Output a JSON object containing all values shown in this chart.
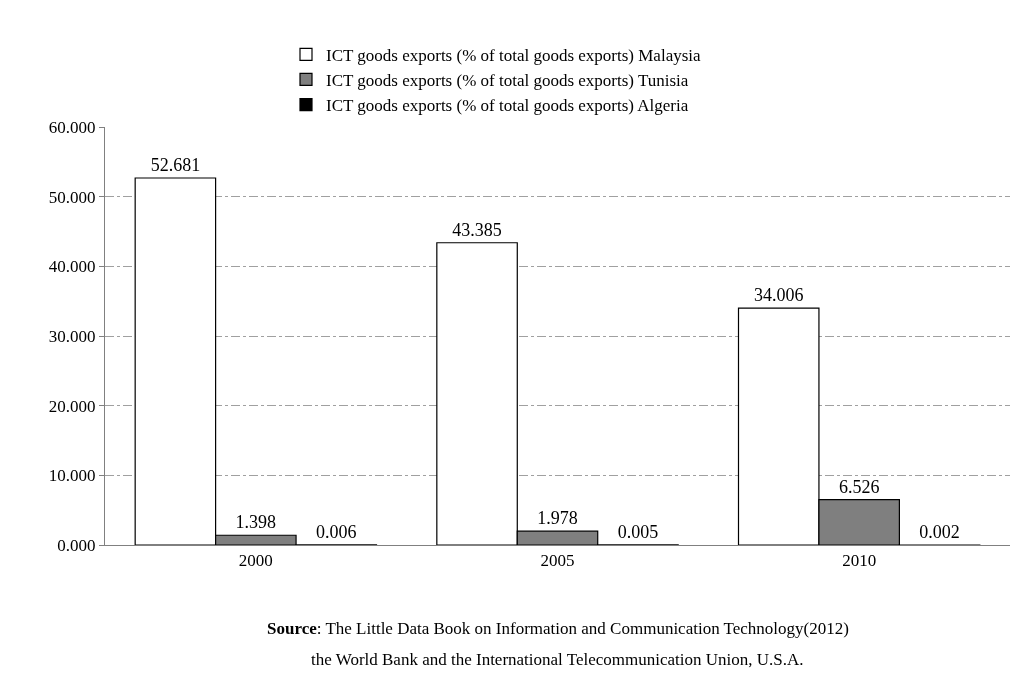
{
  "chart_data": {
    "type": "bar",
    "categories": [
      "2000",
      "2005",
      "2010"
    ],
    "series": [
      {
        "name": "ICT goods exports (% of total goods exports) Malaysia",
        "color": "#ffffff",
        "values": [
          52.681,
          43.385,
          34.006
        ]
      },
      {
        "name": "ICT goods exports (% of total goods exports) Tunisia",
        "color": "#7f7f7f",
        "values": [
          1.398,
          1.978,
          6.526
        ]
      },
      {
        "name": "ICT goods exports (% of total goods exports) Algeria",
        "color": "#000000",
        "values": [
          0.006,
          0.005,
          0.002
        ]
      }
    ],
    "ylim": [
      0,
      60
    ],
    "yticks": [
      {
        "value": 0,
        "label": "0.000"
      },
      {
        "value": 10,
        "label": "10.000"
      },
      {
        "value": 20,
        "label": "20.000"
      },
      {
        "value": 30,
        "label": "30.000"
      },
      {
        "value": 40,
        "label": "40.000"
      },
      {
        "value": 50,
        "label": "50.000"
      },
      {
        "value": 60,
        "label": "60.000"
      }
    ],
    "grid": "y",
    "legend": "top",
    "data_labels": true,
    "annotations": [
      "Source: The Little Data Book on Information and Communication Technology(2012)",
      "the World Bank and the International Telecommunication Union, U.S.A."
    ]
  }
}
